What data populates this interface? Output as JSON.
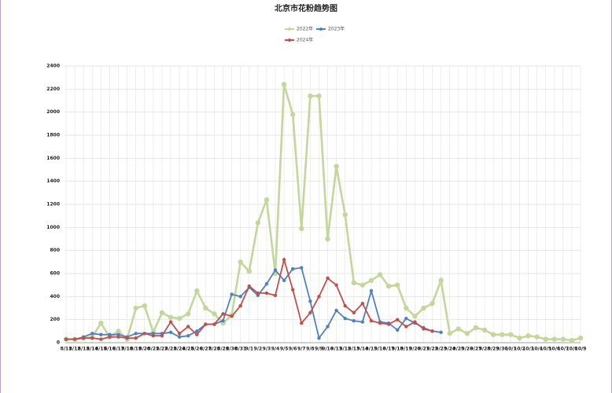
{
  "chart_data": {
    "type": "line",
    "title": "北京市花粉趋势图",
    "categories": [
      "8/11",
      "8/12",
      "8/13",
      "8/14",
      "8/15",
      "8/16",
      "8/17",
      "8/18",
      "8/19",
      "8/20",
      "8/21",
      "8/22",
      "8/23",
      "8/24",
      "8/25",
      "8/26",
      "8/27",
      "8/28",
      "8/29",
      "8/30",
      "8/31",
      "9/1",
      "9/2",
      "9/3",
      "9/4",
      "9/5",
      "9/6",
      "9/7",
      "9/8",
      "9/9",
      "9/10",
      "9/11",
      "9/12",
      "9/13",
      "9/14",
      "9/15",
      "9/16",
      "9/17",
      "9/18",
      "9/19",
      "9/20",
      "9/21",
      "9/22",
      "9/23",
      "9/24",
      "9/25",
      "9/26",
      "9/27",
      "9/28",
      "9/29",
      "9/30",
      "10/1",
      "10/2",
      "10/3",
      "10/4",
      "10/5",
      "10/6",
      "10/7",
      "10/8",
      "10/9"
    ],
    "series": [
      {
        "name": "2022年",
        "color": "#c3d69b",
        "values": [
          30,
          30,
          40,
          50,
          170,
          50,
          100,
          30,
          300,
          320,
          90,
          260,
          220,
          210,
          250,
          450,
          300,
          250,
          170,
          240,
          700,
          620,
          1040,
          1240,
          600,
          2240,
          1980,
          990,
          2140,
          2140,
          900,
          1530,
          1110,
          520,
          500,
          540,
          590,
          490,
          500,
          300,
          230,
          300,
          340,
          540,
          80,
          120,
          80,
          130,
          110,
          70,
          70,
          70,
          40,
          60,
          50,
          30,
          30,
          30,
          20,
          40
        ]
      },
      {
        "name": "2023年",
        "color": "#4f81bd",
        "values": [
          30,
          30,
          50,
          80,
          70,
          70,
          70,
          50,
          80,
          80,
          80,
          80,
          90,
          50,
          60,
          100,
          160,
          160,
          190,
          420,
          400,
          480,
          410,
          510,
          630,
          540,
          640,
          650,
          360,
          40,
          140,
          280,
          210,
          190,
          180,
          450,
          180,
          170,
          110,
          210,
          170,
          130,
          100,
          90,
          null,
          null,
          null,
          null,
          null,
          null,
          null,
          null,
          null,
          null,
          null,
          null,
          null,
          null,
          null,
          null
        ]
      },
      {
        "name": "2024年",
        "color": "#c0504d",
        "values": [
          30,
          30,
          40,
          40,
          30,
          50,
          50,
          40,
          40,
          80,
          60,
          60,
          180,
          80,
          140,
          70,
          160,
          160,
          250,
          230,
          320,
          490,
          430,
          430,
          410,
          720,
          460,
          170,
          260,
          400,
          560,
          500,
          320,
          260,
          340,
          190,
          170,
          160,
          200,
          140,
          180,
          120,
          100,
          null,
          null,
          null,
          null,
          null,
          null,
          null,
          null,
          null,
          null,
          null,
          null,
          null,
          null,
          null,
          null,
          null
        ]
      }
    ],
    "ylim": [
      0,
      2400
    ],
    "yticks": [
      0,
      200,
      400,
      600,
      800,
      1000,
      1200,
      1400,
      1600,
      1800,
      2000,
      2200,
      2400
    ],
    "grid": true
  }
}
